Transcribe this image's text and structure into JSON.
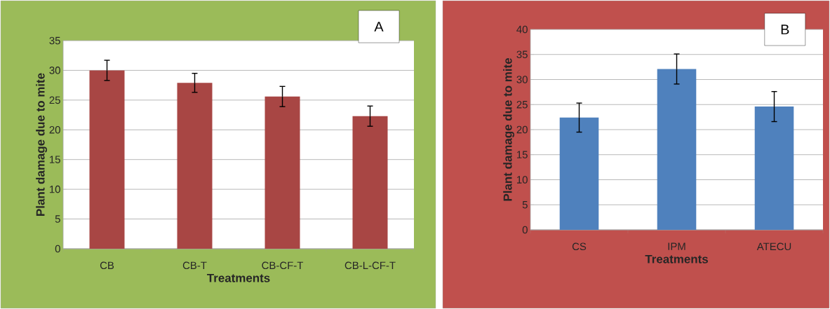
{
  "chart_data": [
    {
      "type": "bar",
      "title": "A",
      "xlabel": "Treatments",
      "ylabel": "Plant damage due to mite",
      "categories": [
        "CB",
        "CB-T",
        "CB-CF-T",
        "CB-L-CF-T"
      ],
      "values": [
        30,
        27.9,
        25.6,
        22.3
      ],
      "errors": [
        1.7,
        1.6,
        1.7,
        1.7
      ],
      "color": "#a84644",
      "ylim": [
        0,
        35
      ],
      "yticks": [
        0,
        5,
        10,
        15,
        20,
        25,
        30,
        35
      ],
      "grid": "y"
    },
    {
      "type": "bar",
      "title": "B",
      "xlabel": "Treatments",
      "ylabel": "Plant damage due to mite",
      "categories": [
        "CS",
        "IPM",
        "ATECU"
      ],
      "values": [
        22.4,
        32.1,
        24.6
      ],
      "errors": [
        2.9,
        3.0,
        3.0
      ],
      "color": "#4f81bd",
      "ylim": [
        0,
        40
      ],
      "yticks": [
        0,
        5,
        10,
        15,
        20,
        25,
        30,
        35,
        40
      ],
      "grid": "y"
    }
  ]
}
